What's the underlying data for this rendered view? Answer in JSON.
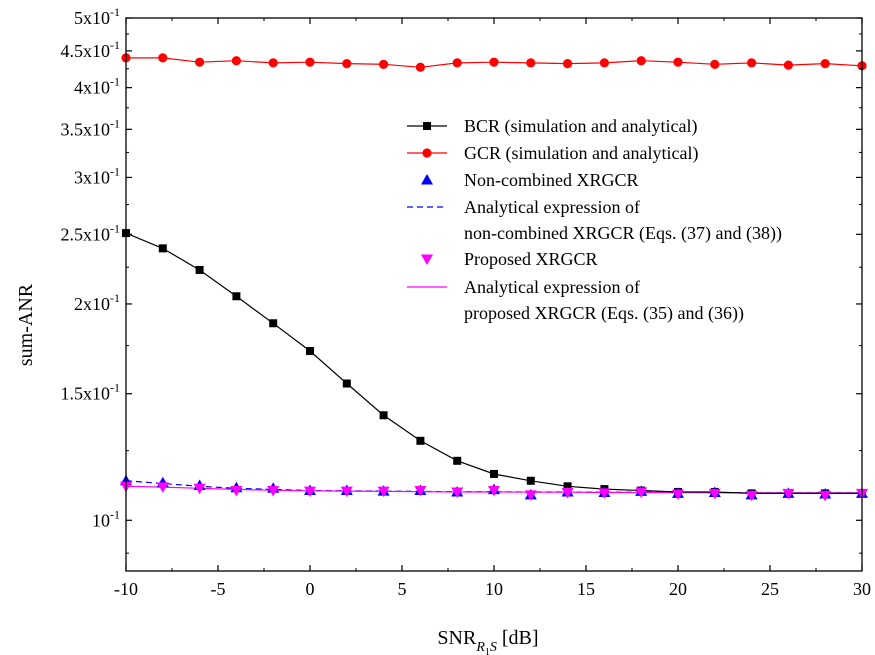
{
  "chart_data": {
    "type": "line",
    "xlabel": "SNR",
    "xlabel_sub": "R",
    "xlabel_subsub": "1",
    "xlabel_subtail": "S",
    "xlabel_unit": "[dB]",
    "ylabel": "sum-ANR",
    "xlim": [
      -10,
      30
    ],
    "ylim": [
      0.085,
      0.5
    ],
    "yscale": "log",
    "grid": false,
    "legend_position": "top-right",
    "x_ticks": [
      -10,
      -5,
      0,
      5,
      10,
      15,
      20,
      25,
      30
    ],
    "x_tick_labels": [
      "-10",
      "-5",
      "0",
      "5",
      "10",
      "15",
      "20",
      "25",
      "30"
    ],
    "y_ticks": [
      {
        "value": 0.1,
        "mantissa": "10",
        "exp": "-1"
      },
      {
        "value": 0.15,
        "mantissa": "1.5x10",
        "exp": "-1"
      },
      {
        "value": 0.2,
        "mantissa": "2x10",
        "exp": "-1"
      },
      {
        "value": 0.25,
        "mantissa": "2.5x10",
        "exp": "-1"
      },
      {
        "value": 0.3,
        "mantissa": "3x10",
        "exp": "-1"
      },
      {
        "value": 0.35,
        "mantissa": "3.5x10",
        "exp": "-1"
      },
      {
        "value": 0.4,
        "mantissa": "4x10",
        "exp": "-1"
      },
      {
        "value": 0.45,
        "mantissa": "4.5x10",
        "exp": "-1"
      },
      {
        "value": 0.5,
        "mantissa": "5x10",
        "exp": "-1"
      }
    ],
    "x": [
      -10,
      -8,
      -6,
      -4,
      -2,
      0,
      2,
      4,
      6,
      8,
      10,
      12,
      14,
      16,
      18,
      20,
      22,
      24,
      26,
      28,
      30
    ],
    "series": [
      {
        "name": "BCR (simulation and analytical)",
        "color": "#000000",
        "marker": "square",
        "line": "solid",
        "values": [
          0.251,
          0.239,
          0.223,
          0.205,
          0.188,
          0.172,
          0.155,
          0.14,
          0.129,
          0.121,
          0.116,
          0.1135,
          0.1115,
          0.1105,
          0.11,
          0.1095,
          0.1095,
          0.109,
          0.109,
          0.109,
          0.109
        ]
      },
      {
        "name": "GCR (simulation and analytical)",
        "color": "#ff0000",
        "marker": "circle",
        "line": "solid",
        "values": [
          0.44,
          0.44,
          0.434,
          0.436,
          0.433,
          0.434,
          0.432,
          0.431,
          0.427,
          0.433,
          0.434,
          0.433,
          0.432,
          0.433,
          0.436,
          0.434,
          0.431,
          0.433,
          0.43,
          0.432,
          0.429
        ]
      },
      {
        "name": "Non-combined XRGCR",
        "color": "#0000ff",
        "marker": "triangle-up",
        "line": "none",
        "values": [
          0.1135,
          0.1128,
          0.1118,
          0.111,
          0.1108,
          0.11,
          0.11,
          0.1098,
          0.11,
          0.1095,
          0.1103,
          0.1085,
          0.1095,
          0.1093,
          0.1097,
          0.109,
          0.1093,
          0.1085,
          0.109,
          0.1088,
          0.109
        ]
      },
      {
        "name": "Analytical expression of non-combined XRGCR (Eqs. (37) and (38))",
        "legend_lines": [
          "Analytical expression of",
          "non-combined XRGCR (Eqs. (37) and (38))"
        ],
        "color": "#0000ff",
        "marker": "none",
        "line": "dashed",
        "values": [
          0.1135,
          0.1125,
          0.1115,
          0.1108,
          0.1104,
          0.11,
          0.1099,
          0.1098,
          0.1097,
          0.1096,
          0.1096,
          0.1095,
          0.1095,
          0.1094,
          0.1094,
          0.1093,
          0.1093,
          0.1092,
          0.1092,
          0.1092,
          0.1092
        ]
      },
      {
        "name": "Proposed XRGCR",
        "color": "#ff00ff",
        "marker": "triangle-down",
        "line": "none",
        "values": [
          0.1115,
          0.1113,
          0.1108,
          0.11,
          0.11,
          0.1098,
          0.1098,
          0.1098,
          0.11,
          0.1095,
          0.11,
          0.1085,
          0.1093,
          0.1092,
          0.1095,
          0.1088,
          0.109,
          0.1083,
          0.109,
          0.1083,
          0.109
        ]
      },
      {
        "name": "Analytical expression of proposed XRGCR (Eqs. (35) and (36))",
        "legend_lines": [
          "Analytical expression of",
          "proposed XRGCR (Eqs. (35) and (36))"
        ],
        "color": "#ff00ff",
        "marker": "none",
        "line": "solid",
        "values": [
          0.1115,
          0.1112,
          0.1108,
          0.1104,
          0.1101,
          0.1099,
          0.1098,
          0.1097,
          0.1096,
          0.1095,
          0.1095,
          0.1094,
          0.1094,
          0.1093,
          0.1093,
          0.1093,
          0.1092,
          0.1092,
          0.1092,
          0.1092,
          0.1092
        ]
      }
    ]
  }
}
